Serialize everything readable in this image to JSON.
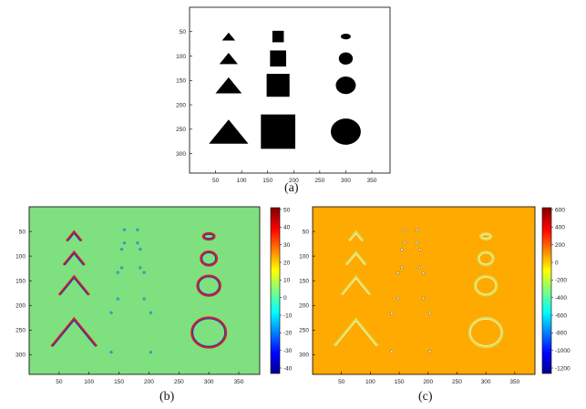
{
  "panels": [
    {
      "caption": "(a)",
      "x_ticks": [
        "50",
        "100",
        "150",
        "200",
        "250",
        "300",
        "350"
      ],
      "y_ticks": [
        "50",
        "100",
        "150",
        "200",
        "250",
        "300"
      ],
      "colors": {
        "background": "#ffffff",
        "shape": "#000000"
      }
    },
    {
      "caption": "(b)",
      "x_ticks": [
        "50",
        "100",
        "150",
        "200",
        "250",
        "300",
        "350"
      ],
      "y_ticks": [
        "50",
        "100",
        "150",
        "200",
        "250",
        "300"
      ],
      "colorbar_ticks": [
        "50",
        "40",
        "30",
        "20",
        "10",
        "0",
        "-10",
        "-20",
        "-30",
        "-40"
      ],
      "colors": {
        "background": "#7ee07e"
      }
    },
    {
      "caption": "(c)",
      "x_ticks": [
        "50",
        "100",
        "150",
        "200",
        "250",
        "300",
        "350"
      ],
      "y_ticks": [
        "50",
        "100",
        "150",
        "200",
        "250",
        "300"
      ],
      "colorbar_ticks": [
        "600",
        "400",
        "200",
        "0",
        "-200",
        "-400",
        "-600",
        "-800",
        "-1000",
        "-1200"
      ],
      "colors": {
        "background": "#ffaa00"
      }
    }
  ],
  "shapes": {
    "rows_y": [
      60,
      105,
      160,
      255
    ],
    "triangle_x": 75,
    "square_x": 170,
    "circle_x": 300,
    "sizes": [
      1,
      1.4,
      2,
      3
    ]
  }
}
